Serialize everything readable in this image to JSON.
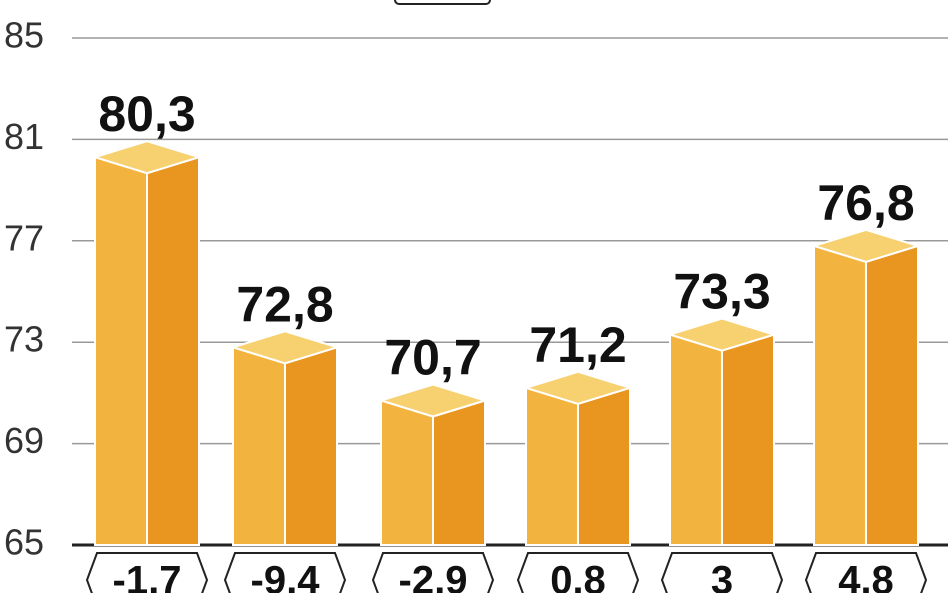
{
  "chart_data": {
    "type": "bar3d",
    "categories": [
      "-1,7",
      "-9,4",
      "-2,9",
      "0,8",
      "3",
      "4,8"
    ],
    "values": [
      80.3,
      72.8,
      70.7,
      71.2,
      73.3,
      76.8
    ],
    "value_labels": [
      "80,3",
      "72,8",
      "70,7",
      "71,2",
      "73,3",
      "76,8"
    ],
    "colors": [
      "#f7d070",
      "#f2b43e",
      "#e8961f"
    ],
    "ylim": [
      65,
      85
    ],
    "yticks": [
      65,
      69,
      73,
      77,
      81,
      85
    ],
    "grid": true
  }
}
